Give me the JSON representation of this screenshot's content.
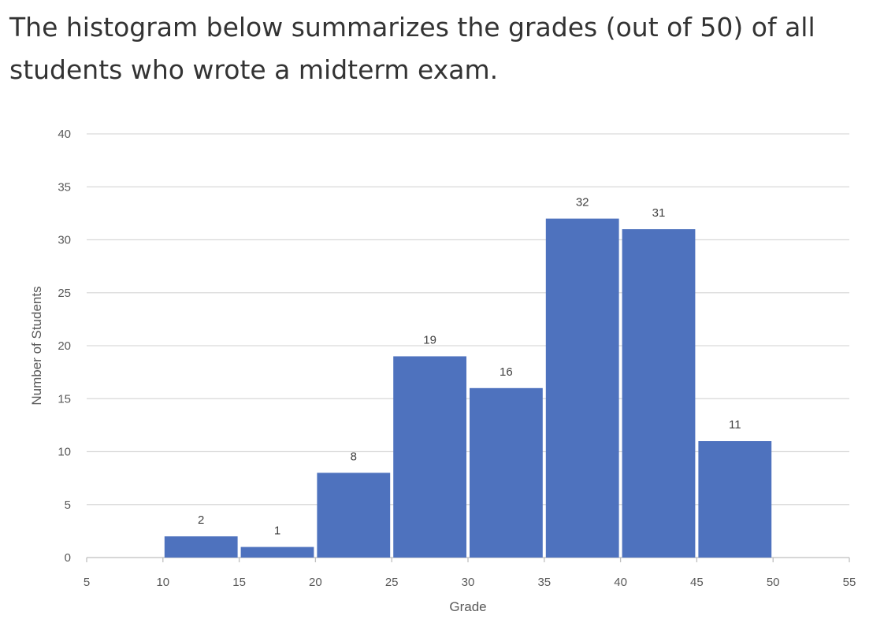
{
  "question": {
    "text": "The histogram below summarizes the grades (out of 50) of all students who wrote a midterm exam."
  },
  "chart_data": {
    "type": "bar",
    "title": "",
    "xlabel": "Grade",
    "ylabel": "Number of Students",
    "bins": [
      {
        "from": 10,
        "to": 15,
        "value": 2
      },
      {
        "from": 15,
        "to": 20,
        "value": 1
      },
      {
        "from": 20,
        "to": 25,
        "value": 8
      },
      {
        "from": 25,
        "to": 30,
        "value": 19
      },
      {
        "from": 30,
        "to": 35,
        "value": 16
      },
      {
        "from": 35,
        "to": 40,
        "value": 32
      },
      {
        "from": 40,
        "to": 45,
        "value": 31
      },
      {
        "from": 45,
        "to": 50,
        "value": 11
      }
    ],
    "xlim": [
      5,
      55
    ],
    "ylim": [
      0,
      40
    ],
    "xticks": [
      5,
      10,
      15,
      20,
      25,
      30,
      35,
      40,
      45,
      50,
      55
    ],
    "yticks": [
      0,
      5,
      10,
      15,
      20,
      25,
      30,
      35,
      40
    ],
    "grid": true,
    "data_labels": true,
    "bar_color": "#4e72be",
    "gridline_color": "#d9d9d9"
  }
}
